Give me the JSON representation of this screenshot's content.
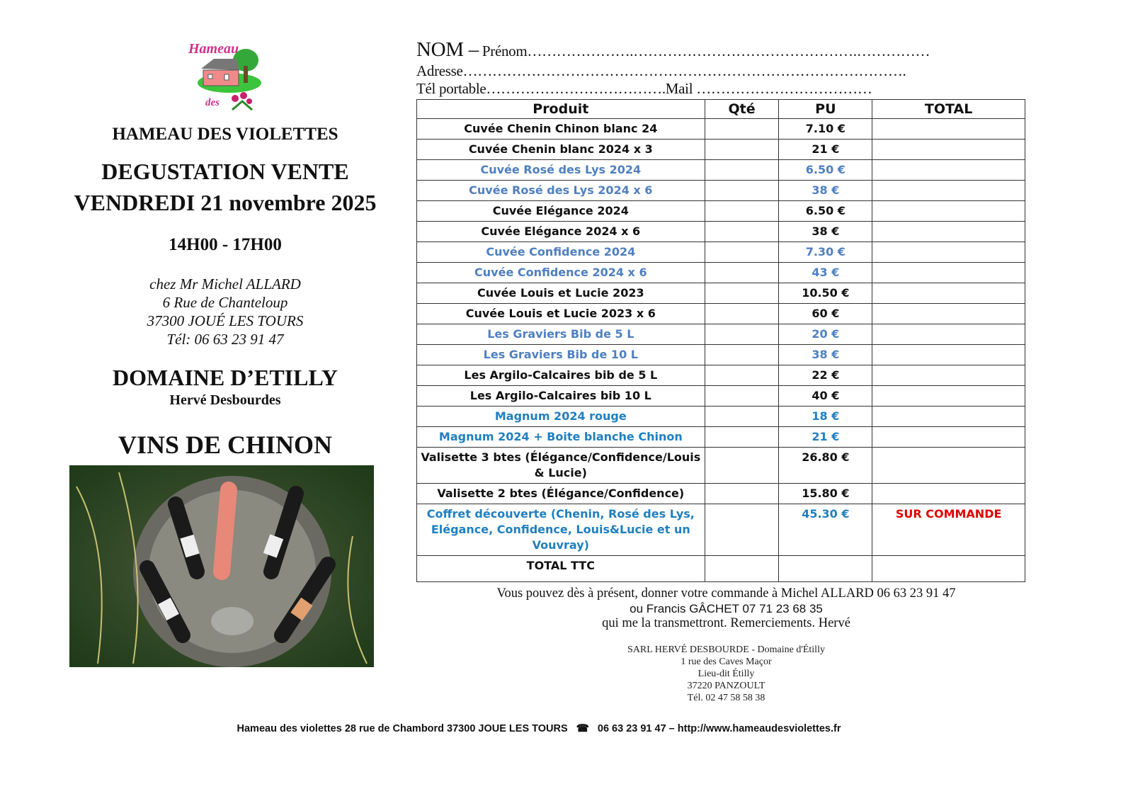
{
  "logo": {
    "text_top": "Hameau",
    "text_bottom": "des",
    "icon": "house-logo"
  },
  "left": {
    "venue_title": "HAMEAU DES VIOLETTES",
    "event_line1": "DEGUSTATION VENTE",
    "event_line2": "VENDREDI 21 novembre 2025",
    "hours": "14H00 - 17H00",
    "address": [
      "chez Mr Michel ALLARD",
      "6 Rue de Chanteloup",
      "37300 JOUÉ LES TOURS",
      "Tél: 06 63 23 91 47"
    ],
    "domaine": "DOMAINE D’ETILLY",
    "owner": "Hervé Desbourdes",
    "wines_title": "VINS DE CHINON"
  },
  "form": {
    "nom": "NOM –",
    "prenom": "Prénom………………….……………………………………….……………",
    "adresse": "Adresse……………………………………………………………………………….",
    "tel": "Tél portable……………………………….Mail ………………………………"
  },
  "table": {
    "headers": [
      "Produit",
      "Qté",
      "PU",
      "TOTAL"
    ],
    "rows": [
      {
        "product": "Cuvée Chenin Chinon blanc 24",
        "pu": "7.10 €",
        "total": "",
        "color": "black"
      },
      {
        "product": "Cuvée Chenin blanc 2024 x 3",
        "pu": "21 €",
        "total": "",
        "color": "black"
      },
      {
        "product": "Cuvée Rosé des Lys 2024",
        "pu": "6.50 €",
        "total": "",
        "color": "lightblue"
      },
      {
        "product": "Cuvée Rosé des Lys 2024 x 6",
        "pu": "38 €",
        "total": "",
        "color": "lightblue"
      },
      {
        "product": "Cuvée Elégance 2024",
        "pu": "6.50 €",
        "total": "",
        "color": "black"
      },
      {
        "product": "Cuvée Elégance 2024 x 6",
        "pu": "38 €",
        "total": "",
        "color": "black"
      },
      {
        "product": "Cuvée Confidence 2024",
        "pu": "7.30 €",
        "total": "",
        "color": "lightblue"
      },
      {
        "product": "Cuvée Confidence 2024 x 6",
        "pu": "43 €",
        "total": "",
        "color": "lightblue"
      },
      {
        "product": "Cuvée Louis et Lucie 2023",
        "pu": "10.50 €",
        "total": "",
        "color": "black"
      },
      {
        "product": "Cuvée Louis et Lucie 2023 x 6",
        "pu": "60 €",
        "total": "",
        "color": "black"
      },
      {
        "product": "Les Graviers Bib de 5 L",
        "pu": "20 €",
        "total": "",
        "color": "lightblue"
      },
      {
        "product": "Les Graviers Bib de 10 L",
        "pu": "38 €",
        "total": "",
        "color": "lightblue"
      },
      {
        "product": "Les Argilo-Calcaires bib de 5 L",
        "pu": "22 €",
        "total": "",
        "color": "black"
      },
      {
        "product": "Les Argilo-Calcaires bib 10 L",
        "pu": "40 €",
        "total": "",
        "color": "black"
      },
      {
        "product": "Magnum 2024 rouge",
        "pu": "18 €",
        "total": "",
        "color": "blue"
      },
      {
        "product": "Magnum 2024 + Boite blanche  Chinon",
        "pu": "21 €",
        "total": "",
        "color": "blue"
      },
      {
        "product": "Valisette 3 btes (Élégance/Confidence/Louis & Lucie)",
        "pu": "26.80 €",
        "total": "",
        "color": "black"
      },
      {
        "product": "Valisette 2 btes (Élégance/Confidence)",
        "pu": "15.80 €",
        "total": "",
        "color": "black"
      },
      {
        "product": "Coffret découverte (Chenin, Rosé des Lys, Elégance, Confidence, Louis&Lucie et un Vouvray)",
        "pu": "45.30 €",
        "total": "SUR COMMANDE",
        "color": "blue"
      }
    ],
    "total_label": "TOTAL TTC"
  },
  "colors": {
    "lightblue": "#4f7fc0",
    "blue": "#1f7fc0",
    "red": "#e00000"
  },
  "order_note": [
    "Vous pouvez dès à présent, donner votre commande à Michel ALLARD 06 63 23 91 47",
    "ou Francis GÂCHET 07 71 23 68 35",
    "qui me la transmettront. Remerciements. Hervé"
  ],
  "company": [
    "SARL HERVÉ DESBOURDE - Domaine d'Étilly",
    "1 rue des Caves Maçor",
    "Lieu-dit Étilly",
    "37220 PANZOULT",
    "Tél. 02 47 58 58 38"
  ],
  "footer": {
    "left": "Hameau des violettes 28 rue de Chambord 37300 JOUE LES TOURS",
    "icon": "phone-icon",
    "right": "06 63 23 91 47 – http://www.hameaudesviolettes.fr"
  }
}
